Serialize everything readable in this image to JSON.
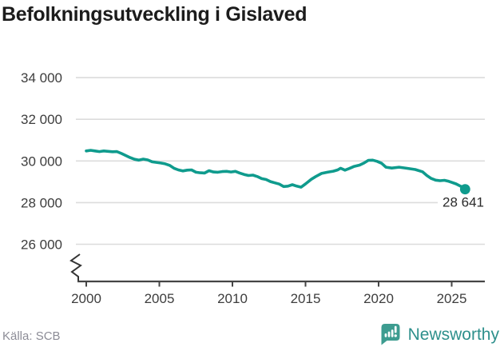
{
  "title": "Befolkningsutveckling i Gislaved",
  "footer": {
    "source": "Källa: SCB",
    "brand_name": "Newsworthy"
  },
  "branding": {
    "logo_color": "#3d9c90",
    "text_color": "#2e908c"
  },
  "colors": {
    "line": "#0f9b8d",
    "grid": "#dcdcdc",
    "axis": "#454545",
    "tick_text": "#3d3d3d",
    "title_text": "#1c1c1c",
    "source_text": "#8c8c96",
    "annotation_text": "#2b2b2b",
    "background": "#ffffff"
  },
  "chart_data": {
    "type": "line",
    "title": "Befolkningsutveckling i Gislaved",
    "series_name": "Folkmängd",
    "xlabel": "",
    "ylabel": "",
    "grid": "horizontal",
    "legend": "none",
    "axis_break": true,
    "ylim_displayed": [
      26000,
      34000
    ],
    "xlim": [
      1999.4,
      2027.3
    ],
    "y_ticks": [
      34000,
      32000,
      30000,
      28000,
      26000
    ],
    "y_tick_labels": [
      "34 000",
      "32 000",
      "30 000",
      "28 000",
      "26 000"
    ],
    "x_ticks": [
      2000,
      2005,
      2010,
      2015,
      2020,
      2025
    ],
    "x_tick_labels": [
      "2000",
      "2005",
      "2010",
      "2015",
      "2020",
      "2025"
    ],
    "end_label": "28 641",
    "end_value": 28641,
    "source": "Källa: SCB",
    "x": [
      2000.0,
      2000.3,
      2000.6,
      2000.9,
      2001.2,
      2001.5,
      2001.8,
      2002.1,
      2002.4,
      2002.7,
      2003.0,
      2003.3,
      2003.6,
      2003.9,
      2004.2,
      2004.5,
      2004.8,
      2005.1,
      2005.4,
      2005.7,
      2006.0,
      2006.3,
      2006.6,
      2006.9,
      2007.2,
      2007.5,
      2007.8,
      2008.1,
      2008.4,
      2008.7,
      2009.0,
      2009.3,
      2009.6,
      2009.9,
      2010.2,
      2010.5,
      2010.8,
      2011.1,
      2011.4,
      2011.7,
      2012.0,
      2012.3,
      2012.6,
      2012.9,
      2013.2,
      2013.5,
      2013.8,
      2014.1,
      2014.4,
      2014.7,
      2015.0,
      2015.4,
      2015.7,
      2016.1,
      2016.5,
      2016.9,
      2017.2,
      2017.4,
      2017.7,
      2018.0,
      2018.3,
      2018.7,
      2019.0,
      2019.3,
      2019.6,
      2019.9,
      2020.2,
      2020.5,
      2020.9,
      2021.4,
      2021.9,
      2022.5,
      2023.0,
      2023.3,
      2023.6,
      2023.9,
      2024.2,
      2024.5,
      2024.8,
      2025.0,
      2025.3,
      2025.6,
      2025.92
    ],
    "y": [
      30480,
      30510,
      30480,
      30450,
      30480,
      30460,
      30440,
      30450,
      30360,
      30260,
      30160,
      30080,
      30040,
      30090,
      30050,
      29960,
      29930,
      29900,
      29860,
      29790,
      29650,
      29570,
      29520,
      29560,
      29570,
      29460,
      29430,
      29420,
      29530,
      29470,
      29460,
      29490,
      29500,
      29470,
      29500,
      29420,
      29350,
      29300,
      29320,
      29250,
      29150,
      29110,
      29010,
      28950,
      28890,
      28770,
      28790,
      28860,
      28790,
      28740,
      28900,
      29120,
      29250,
      29400,
      29460,
      29510,
      29570,
      29650,
      29560,
      29640,
      29730,
      29800,
      29900,
      30030,
      30040,
      29980,
      29890,
      29700,
      29660,
      29700,
      29650,
      29590,
      29480,
      29300,
      29160,
      29080,
      29050,
      29070,
      29020,
      28970,
      28900,
      28790,
      28641
    ]
  }
}
